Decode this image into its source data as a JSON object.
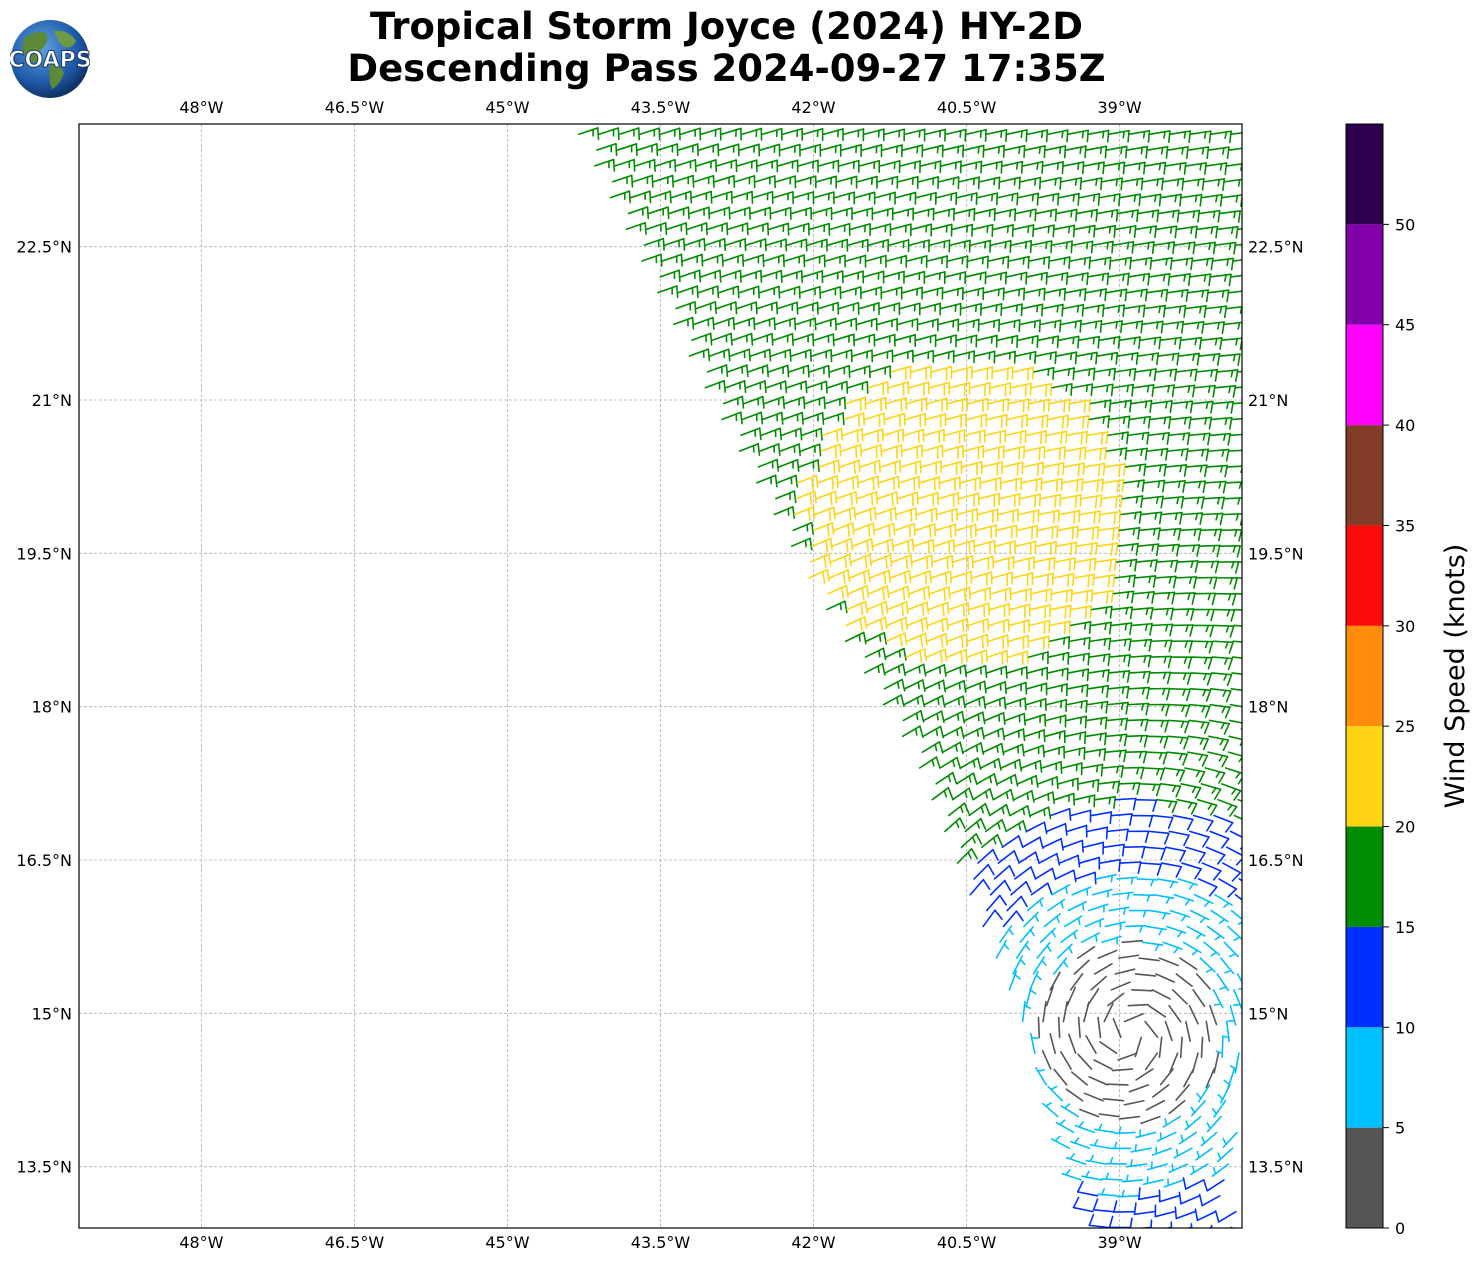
{
  "title": {
    "line1": "Tropical Storm Joyce (2024) HY-2D",
    "line2": "Descending Pass 2024-09-27 17:35Z"
  },
  "logo": {
    "text": "COAPS",
    "icon": "globe-logo-icon"
  },
  "map": {
    "lon_range": [
      -49.2,
      -37.8
    ],
    "lat_range": [
      12.9,
      23.7
    ],
    "lon_ticks": [
      {
        "value": -48,
        "label": "48°W"
      },
      {
        "value": -46.5,
        "label": "46.5°W"
      },
      {
        "value": -45,
        "label": "45°W"
      },
      {
        "value": -43.5,
        "label": "43.5°W"
      },
      {
        "value": -42,
        "label": "42°W"
      },
      {
        "value": -40.5,
        "label": "40.5°W"
      },
      {
        "value": -39,
        "label": "39°W"
      }
    ],
    "lat_ticks": [
      {
        "value": 22.5,
        "label": "22.5°N"
      },
      {
        "value": 21,
        "label": "21°N"
      },
      {
        "value": 19.5,
        "label": "19.5°N"
      },
      {
        "value": 18,
        "label": "18°N"
      },
      {
        "value": 16.5,
        "label": "16.5°N"
      },
      {
        "value": 15,
        "label": "15°N"
      },
      {
        "value": 13.5,
        "label": "13.5°N"
      }
    ],
    "grid": true,
    "swath_west_edge": [
      {
        "lat": 23.6,
        "lon": -44.3
      },
      {
        "lat": 21.0,
        "lon": -43.0
      },
      {
        "lat": 19.0,
        "lon": -41.9
      },
      {
        "lat": 17.5,
        "lon": -41.0
      },
      {
        "lat": 16.0,
        "lon": -40.4
      },
      {
        "lat": 14.8,
        "lon": -39.9
      },
      {
        "lat": 13.7,
        "lon": -39.5
      },
      {
        "lat": 12.9,
        "lon": -39.2
      }
    ],
    "swath_east_edge": -37.82,
    "vortex_center": {
      "lat": 14.8,
      "lon": -38.9
    }
  },
  "colorbar": {
    "label": "Wind Speed (knots)",
    "bins": [
      {
        "min": 0,
        "max": 5,
        "color": "#555555"
      },
      {
        "min": 5,
        "max": 10,
        "color": "#00bfff"
      },
      {
        "min": 10,
        "max": 15,
        "color": "#0030ff"
      },
      {
        "min": 15,
        "max": 20,
        "color": "#008c00"
      },
      {
        "min": 20,
        "max": 25,
        "color": "#ffd414"
      },
      {
        "min": 25,
        "max": 30,
        "color": "#ff8c0a"
      },
      {
        "min": 30,
        "max": 35,
        "color": "#ff0a0a"
      },
      {
        "min": 35,
        "max": 40,
        "color": "#823c28"
      },
      {
        "min": 40,
        "max": 45,
        "color": "#ff00ff"
      },
      {
        "min": 45,
        "max": 50,
        "color": "#8200aa"
      },
      {
        "min": 50,
        "max": 55,
        "color": "#2d0050"
      }
    ],
    "tick_labels": [
      "0",
      "5",
      "10",
      "15",
      "20",
      "25",
      "30",
      "35",
      "40",
      "45",
      "50"
    ]
  }
}
